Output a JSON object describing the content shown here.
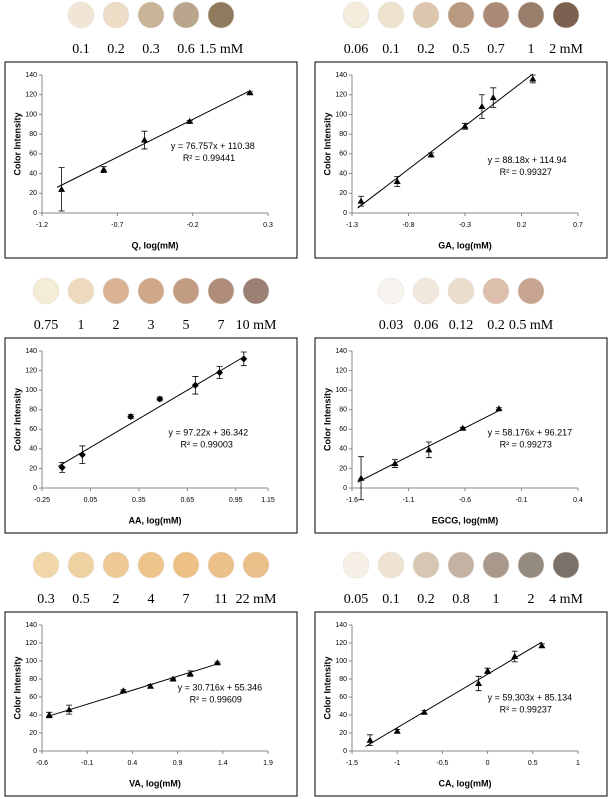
{
  "chart_data": [
    {
      "type": "scatter",
      "x_label": "Q, log(mM)",
      "y_label": "Color Intensity",
      "equation": "y = 76.757x + 110.38",
      "r_squared": "R² = 0.99441",
      "marker": "triangle",
      "color": "#000000",
      "x": [
        -1.07,
        -0.79,
        -0.52,
        -0.22,
        0.18
      ],
      "values": [
        24,
        44,
        74,
        93,
        122
      ],
      "errors": [
        22,
        3,
        9,
        1,
        1
      ],
      "trend": {
        "x": [
          -1.1,
          0.18
        ],
        "y": [
          26,
          124
        ]
      },
      "xlim": [
        -1.2,
        0.3
      ],
      "xticks": [
        -1.2,
        -0.7,
        -0.2,
        0.3
      ],
      "ylim": [
        0,
        140
      ],
      "yticks": [
        0,
        20,
        40,
        60,
        80,
        100,
        120,
        140
      ],
      "swatches": [
        {
          "label": "0.1",
          "color": "#f1e6d5"
        },
        {
          "label": "0.2",
          "color": "#eddcc6"
        },
        {
          "label": "0.3",
          "color": "#c9b49a"
        },
        {
          "label": "0.6",
          "color": "#b9a58c"
        },
        {
          "label": "1.5 mM",
          "color": "#8f7a5e"
        }
      ]
    },
    {
      "type": "scatter",
      "x_label": "GA, log(mM)",
      "y_label": "Color Intensity",
      "equation": "y = 88.18x + 114.94",
      "r_squared": "R² = 0.99327",
      "marker": "triangle",
      "color": "#000000",
      "x": [
        -1.22,
        -0.9,
        -0.6,
        -0.3,
        -0.15,
        -0.05,
        0.3
      ],
      "values": [
        12,
        32,
        59,
        88,
        108,
        117,
        136
      ],
      "errors": [
        5,
        5,
        2,
        3,
        12,
        10,
        4
      ],
      "trend": {
        "x": [
          -1.25,
          0.3
        ],
        "y": [
          5,
          141
        ]
      },
      "xlim": [
        -1.3,
        0.7
      ],
      "xticks": [
        -1.3,
        -0.8,
        -0.3,
        0.2,
        0.7
      ],
      "ylim": [
        0,
        140
      ],
      "yticks": [
        0,
        20,
        40,
        60,
        80,
        100,
        120,
        140
      ],
      "swatches": [
        {
          "label": "0.06",
          "color": "#f4ecdc"
        },
        {
          "label": "0.1",
          "color": "#efe3cf"
        },
        {
          "label": "0.2",
          "color": "#dcc6ad"
        },
        {
          "label": "0.5",
          "color": "#b89a80"
        },
        {
          "label": "0.7",
          "color": "#a98a74"
        },
        {
          "label": "1",
          "color": "#9a7e6c"
        },
        {
          "label": "2 mM",
          "color": "#7c6050"
        }
      ]
    },
    {
      "type": "scatter",
      "x_label": "AA, log(mM)",
      "y_label": "Color Intensity",
      "equation": "y = 97.22x + 36.342",
      "r_squared": "R² = 0.99003",
      "marker": "diamond",
      "color": "#000000",
      "x": [
        -0.125,
        0,
        0.3,
        0.48,
        0.7,
        0.85,
        1.0
      ],
      "values": [
        21,
        34,
        73,
        91,
        105,
        118,
        132
      ],
      "errors": [
        5,
        9,
        2,
        2,
        9,
        6,
        7
      ],
      "trend": {
        "x": [
          -0.15,
          1.0
        ],
        "y": [
          22,
          134
        ]
      },
      "xlim": [
        -0.25,
        1.15
      ],
      "xticks": [
        -0.25,
        0.05,
        0.35,
        0.65,
        0.95,
        1.15
      ],
      "ylim": [
        0,
        140
      ],
      "yticks": [
        0,
        20,
        40,
        60,
        80,
        100,
        120,
        140
      ],
      "swatches": [
        {
          "label": "0.75",
          "color": "#f5ecd6"
        },
        {
          "label": "1",
          "color": "#edd9bd"
        },
        {
          "label": "2",
          "color": "#d9b394"
        },
        {
          "label": "3",
          "color": "#cfa88a"
        },
        {
          "label": "5",
          "color": "#c29c82"
        },
        {
          "label": "7",
          "color": "#b08d7a"
        },
        {
          "label": "10 mM",
          "color": "#9c8076"
        }
      ]
    },
    {
      "type": "scatter",
      "x_label": "EGCG, log(mM)",
      "y_label": "Color Intensity",
      "equation": "y = 58.176x + 96.217",
      "r_squared": "R² = 0.99273",
      "marker": "triangle",
      "color": "#000000",
      "x": [
        -1.52,
        -1.22,
        -0.92,
        -0.62,
        -0.3
      ],
      "values": [
        10,
        25,
        39,
        61,
        81
      ],
      "errors": [
        22,
        4,
        8,
        1,
        1
      ],
      "trend": {
        "x": [
          -1.55,
          -0.3
        ],
        "y": [
          6,
          79
        ]
      },
      "xlim": [
        -1.6,
        0.4
      ],
      "xticks": [
        -1.6,
        -1.1,
        -0.6,
        -0.1,
        0.4
      ],
      "ylim": [
        0,
        140
      ],
      "yticks": [
        0,
        20,
        40,
        60,
        80,
        100,
        120,
        140
      ],
      "swatches": [
        {
          "label": "0.03",
          "color": "#f7f3ee"
        },
        {
          "label": "0.06",
          "color": "#f0e8dc"
        },
        {
          "label": "0.12",
          "color": "#ebddcc"
        },
        {
          "label": "0.2",
          "color": "#dcbfac"
        },
        {
          "label": "0.5 mM",
          "color": "#c7a48f"
        }
      ]
    },
    {
      "type": "scatter",
      "x_label": "VA, log(mM)",
      "y_label": "Color Intensity",
      "equation": "y = 30.716x + 55.346",
      "r_squared": "R² = 0.99609",
      "marker": "triangle",
      "color": "#000000",
      "x": [
        -0.52,
        -0.3,
        0.3,
        0.6,
        0.85,
        1.04,
        1.34
      ],
      "values": [
        40,
        46,
        67,
        72,
        80,
        86,
        98
      ],
      "errors": [
        3,
        5,
        1,
        2,
        1,
        3,
        1
      ],
      "trend": {
        "x": [
          -0.55,
          1.35
        ],
        "y": [
          38,
          97
        ]
      },
      "xlim": [
        -0.6,
        1.9
      ],
      "xticks": [
        -0.6,
        -0.1,
        0.4,
        0.9,
        1.4,
        1.9
      ],
      "ylim": [
        0,
        140
      ],
      "yticks": [
        0,
        20,
        40,
        60,
        80,
        100,
        120,
        140
      ],
      "swatches": [
        {
          "label": "0.3",
          "color": "#f1d6a8"
        },
        {
          "label": "0.5",
          "color": "#efd2a2"
        },
        {
          "label": "2",
          "color": "#eec996"
        },
        {
          "label": "4",
          "color": "#efc48c"
        },
        {
          "label": "7",
          "color": "#edc186"
        },
        {
          "label": "11",
          "color": "#ecc08a"
        },
        {
          "label": "22 mM",
          "color": "#ebbf8a"
        }
      ]
    },
    {
      "type": "scatter",
      "x_label": "CA, log(mM)",
      "y_label": "Color Intensity",
      "equation": "y = 59.303x + 85.134",
      "r_squared": "R² = 0.99237",
      "marker": "triangle",
      "color": "#000000",
      "x": [
        -1.3,
        -1.0,
        -0.7,
        -0.1,
        0,
        0.3,
        0.6
      ],
      "values": [
        12,
        22,
        43,
        75,
        89,
        105,
        117
      ],
      "errors": [
        6,
        2,
        2,
        8,
        3,
        6,
        2
      ],
      "trend": {
        "x": [
          -1.35,
          0.6
        ],
        "y": [
          5,
          121
        ]
      },
      "xlim": [
        -1.5,
        1
      ],
      "xticks": [
        -1.5,
        -1,
        -0.5,
        0,
        0.5,
        1
      ],
      "ylim": [
        0,
        140
      ],
      "yticks": [
        0,
        20,
        40,
        60,
        80,
        100,
        120,
        140
      ],
      "swatches": [
        {
          "label": "0.05",
          "color": "#f5efe5"
        },
        {
          "label": "0.1",
          "color": "#eee3d3"
        },
        {
          "label": "0.2",
          "color": "#d7c6b3"
        },
        {
          "label": "0.8",
          "color": "#c4b2a2"
        },
        {
          "label": "1",
          "color": "#a8998c"
        },
        {
          "label": "2",
          "color": "#958a80"
        },
        {
          "label": "4 mM",
          "color": "#7a716a"
        }
      ]
    }
  ]
}
